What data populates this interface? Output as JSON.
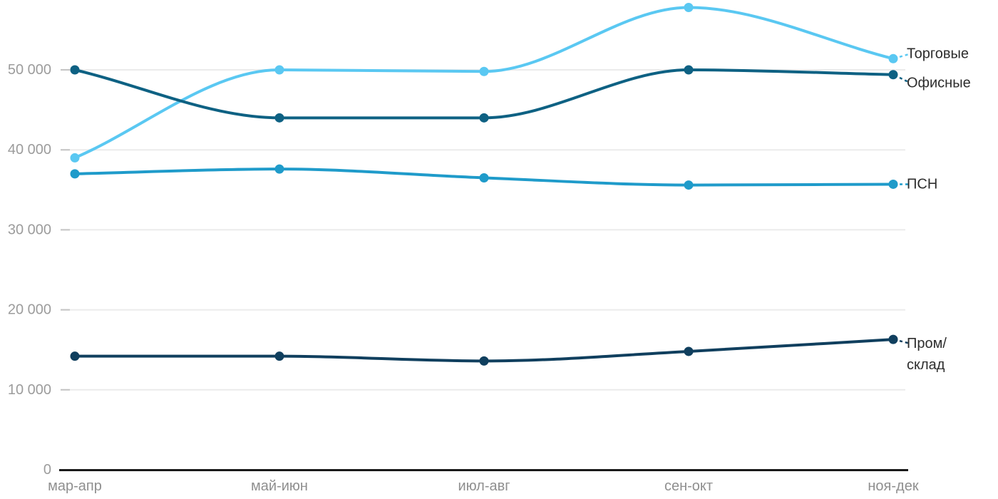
{
  "chart_data": {
    "type": "line",
    "title": "",
    "xlabel": "",
    "ylabel": "",
    "grid": "horizontal",
    "legend_position": "right-at-line-ends",
    "categories": [
      "мар-апр",
      "май-июн",
      "июл-авг",
      "сен-окт",
      "ноя-дек"
    ],
    "series": [
      {
        "name": "Торговые",
        "label_lines": [
          "Торговые"
        ],
        "color": "#5AC8F2",
        "values": [
          39000,
          50000,
          49800,
          57800,
          51400
        ]
      },
      {
        "name": "Офисные",
        "label_lines": [
          "Офисные"
        ],
        "color": "#0E6183",
        "values": [
          50000,
          44000,
          44000,
          50000,
          49400
        ]
      },
      {
        "name": "ПСН",
        "label_lines": [
          "ПСН"
        ],
        "color": "#1F9BCA",
        "values": [
          37000,
          37600,
          36500,
          35600,
          35700
        ]
      },
      {
        "name": "Пром/склад",
        "label_lines": [
          "Пром/",
          "склад"
        ],
        "color": "#103F5E",
        "values": [
          14200,
          14200,
          13600,
          14800,
          16300
        ]
      }
    ],
    "yticks": [
      {
        "value": 0,
        "label": "0"
      },
      {
        "value": 10000,
        "label": "10 000"
      },
      {
        "value": 20000,
        "label": "20 000"
      },
      {
        "value": 30000,
        "label": "30 000"
      },
      {
        "value": 40000,
        "label": "40 000"
      },
      {
        "value": 50000,
        "label": "50 000"
      }
    ],
    "ylim": [
      0,
      60000
    ]
  },
  "colors": {
    "gridline": "#ebebeb",
    "tick": "#c4c4c4",
    "axis_line": "#1a1a1a",
    "y_tick_label": "#9c9c9c",
    "x_tick_label": "#8f8f8f",
    "series_label": "#2d2d2d",
    "background": "#ffffff"
  }
}
